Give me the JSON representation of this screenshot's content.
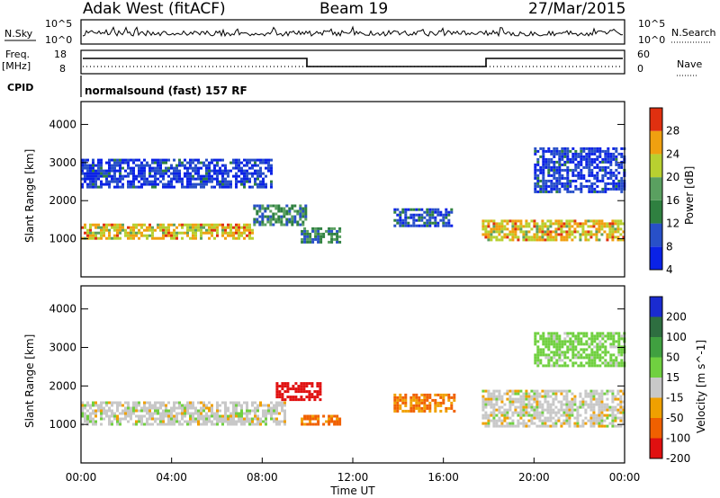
{
  "header": {
    "station": "Adak West (fitACF)",
    "beam": "Beam 19",
    "date": "27/Mar/2015"
  },
  "noise_panel": {
    "left_label": "N.Sky",
    "right_label": "N.Search",
    "left_ticks": [
      "10^5",
      "10^0"
    ],
    "right_ticks": [
      "10^5",
      "10^0"
    ]
  },
  "freq_panel": {
    "left_label_1": "Freq.",
    "left_label_2": "[MHz]",
    "right_label": "Nave",
    "left_ticks": [
      "18",
      "8"
    ],
    "right_ticks": [
      "60",
      "0"
    ]
  },
  "cpid": {
    "label": "CPID",
    "value": "normalsound (fast) 157 RF"
  },
  "time_axis": {
    "label": "Time UT",
    "ticks": [
      "00:00",
      "04:00",
      "08:00",
      "12:00",
      "16:00",
      "20:00",
      "00:00"
    ]
  },
  "chart_data": [
    {
      "type": "heatmap",
      "title": "",
      "xlabel": "Time UT",
      "ylabel": "Slant Range [km]",
      "x_range_hours": [
        0,
        24
      ],
      "ylim": [
        0,
        4600
      ],
      "y_ticks": [
        1000,
        2000,
        3000,
        4000
      ],
      "colorbar": {
        "label": "Power [dB]",
        "ticks": [
          4,
          8,
          12,
          16,
          20,
          24,
          28
        ],
        "colors": [
          "#0a22e6",
          "#2850c8",
          "#2f8040",
          "#5aa060",
          "#b8d030",
          "#f0a010",
          "#e03010"
        ]
      },
      "echo_regions": [
        {
          "t": [
            0.0,
            7.6
          ],
          "range_km": [
            1000,
            1400
          ],
          "power_db": 24
        },
        {
          "t": [
            7.6,
            10.0
          ],
          "range_km": [
            1300,
            1900
          ],
          "power_db": 14
        },
        {
          "t": [
            0.0,
            8.5
          ],
          "range_km": [
            2300,
            3100
          ],
          "power_db": 8
        },
        {
          "t": [
            9.7,
            11.5
          ],
          "range_km": [
            900,
            1300
          ],
          "power_db": 14
        },
        {
          "t": [
            13.8,
            16.4
          ],
          "range_km": [
            1300,
            1800
          ],
          "power_db": 10
        },
        {
          "t": [
            17.7,
            24.0
          ],
          "range_km": [
            950,
            1500
          ],
          "power_db": 24
        },
        {
          "t": [
            20.0,
            24.0
          ],
          "range_km": [
            2200,
            3400
          ],
          "power_db": 8
        }
      ]
    },
    {
      "type": "heatmap",
      "title": "",
      "xlabel": "Time UT",
      "ylabel": "Slant Range [km]",
      "x_range_hours": [
        0,
        24
      ],
      "ylim": [
        0,
        4600
      ],
      "y_ticks": [
        1000,
        2000,
        3000,
        4000
      ],
      "colorbar": {
        "label": "Velocity [m s^-1]",
        "ticks": [
          200,
          100,
          50,
          15,
          -15,
          -50,
          -100,
          -200
        ],
        "colors": [
          "#1a2bd0",
          "#2e6e40",
          "#40a040",
          "#70d040",
          "#c8c8c8",
          "#f0a000",
          "#f06000",
          "#e01010"
        ]
      },
      "echo_regions": [
        {
          "t": [
            0.0,
            9.0
          ],
          "range_km": [
            1000,
            1600
          ],
          "velocity_ms": 0
        },
        {
          "t": [
            8.6,
            10.6
          ],
          "range_km": [
            1600,
            2100
          ],
          "velocity_ms": -200
        },
        {
          "t": [
            9.7,
            11.5
          ],
          "range_km": [
            950,
            1250
          ],
          "velocity_ms": -60
        },
        {
          "t": [
            13.8,
            16.5
          ],
          "range_km": [
            1300,
            1800
          ],
          "velocity_ms": -50
        },
        {
          "t": [
            17.7,
            24.0
          ],
          "range_km": [
            950,
            1900
          ],
          "velocity_ms": 0
        },
        {
          "t": [
            20.0,
            24.0
          ],
          "range_km": [
            2500,
            3400
          ],
          "velocity_ms": 30
        }
      ]
    }
  ]
}
